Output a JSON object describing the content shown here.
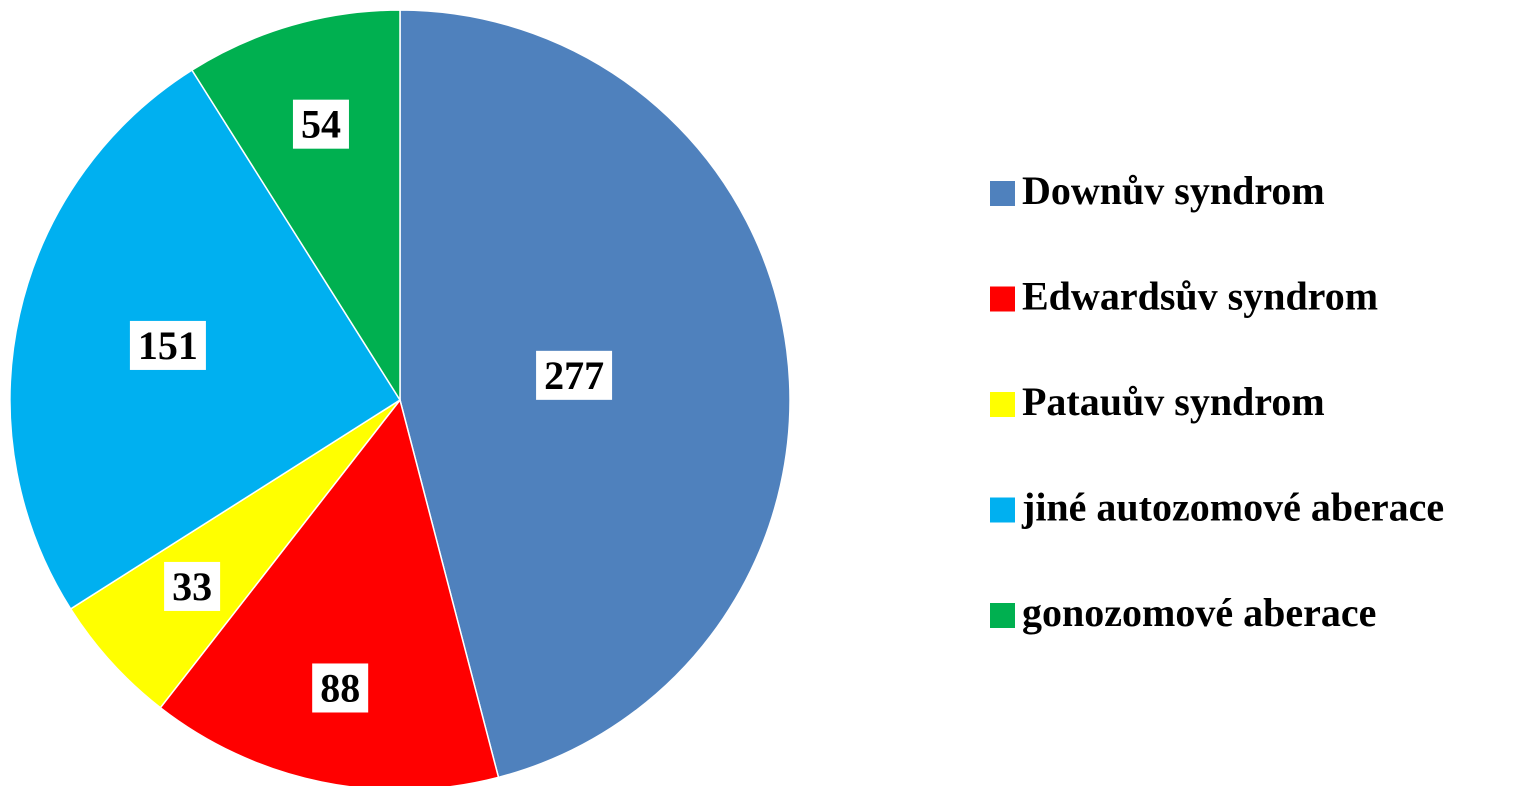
{
  "chart_data": {
    "type": "pie",
    "categories": [
      "Downův syndrom",
      "Edwardsův syndrom",
      "Patauův syndrom",
      "jiné autozomové aberace",
      "gonozomové aberace"
    ],
    "values": [
      277,
      88,
      33,
      151,
      54
    ],
    "colors": [
      "#4f81bd",
      "#ff0000",
      "#ffff00",
      "#00b0f0",
      "#00b050"
    ],
    "legend": "right"
  }
}
